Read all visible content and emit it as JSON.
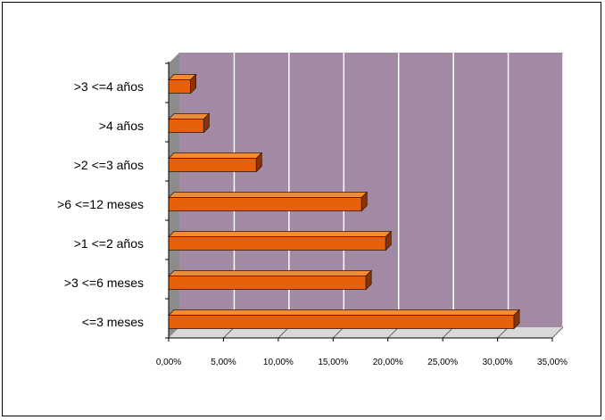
{
  "chart_data": {
    "type": "bar",
    "orientation": "horizontal",
    "categories": [
      ">3 <=4  años",
      ">4 años",
      ">2 <=3  años",
      ">6 <=12  meses",
      ">1 <=2  años",
      ">3 <=6  meses",
      "<=3 meses"
    ],
    "values": [
      2.0,
      3.2,
      8.0,
      17.6,
      19.8,
      18.0,
      31.5
    ],
    "unit": "%",
    "xlim": [
      0,
      35
    ],
    "xticks": [
      0,
      5,
      10,
      15,
      20,
      25,
      30,
      35
    ],
    "xtick_labels": [
      "0,00%",
      "5,00%",
      "10,00%",
      "15,00%",
      "20,00%",
      "25,00%",
      "30,00%",
      "35,00%"
    ],
    "grid": "vertical",
    "legend": "none",
    "colors": {
      "bar_front": "#e8600c",
      "bar_top": "#f58a2e",
      "bar_side": "#8a3307",
      "plot_back": "#a38aa4",
      "plot_wall": "#8c8c8c",
      "grid": "#ffffff"
    }
  }
}
